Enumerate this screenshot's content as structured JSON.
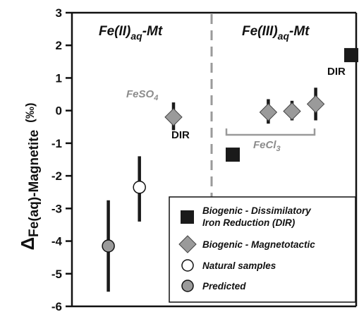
{
  "chart_data": {
    "type": "scatter",
    "ylabel": {
      "delta": "Δ",
      "main": "Fe(aq)-Magnetite",
      "unit": "(‰)"
    },
    "ylim": [
      -6,
      3
    ],
    "yticks": [
      "3",
      "2",
      "1",
      "0",
      "-1",
      "-2",
      "-3",
      "-4",
      "-5",
      "-6"
    ],
    "grid": false,
    "panels": {
      "left": {
        "label": "Fe(II)",
        "label_sub": "aq",
        "label_suffix": "-Mt"
      },
      "right": {
        "label": "Fe(III)",
        "label_sub": "aq",
        "label_suffix": "-Mt"
      }
    },
    "annotations": {
      "feso4": {
        "main": "FeSO",
        "sub": "4"
      },
      "fecl3": {
        "main": "FeCl",
        "sub": "3"
      },
      "dir_left": "DIR",
      "dir_right": "DIR"
    },
    "series": [
      {
        "name": "Biogenic - Dissimilatory Iron Reduction (DIR)",
        "marker": "square",
        "color": "#1a1a1a",
        "points": [
          {
            "x": 5,
            "y": -1.35
          },
          {
            "x": 9,
            "y": 1.7
          }
        ]
      },
      {
        "name": "Biogenic - Magnetotactic",
        "marker": "diamond",
        "color": "#9a9a9a",
        "points": [
          {
            "x": 3,
            "y": -0.2,
            "lo": -0.6,
            "hi": 0.25
          },
          {
            "x": 6.2,
            "y": -0.05,
            "lo": -0.4,
            "hi": 0.35
          },
          {
            "x": 7,
            "y": -0.02,
            "lo": -0.3,
            "hi": 0.3
          },
          {
            "x": 7.8,
            "y": 0.2,
            "lo": -0.3,
            "hi": 0.7
          }
        ]
      },
      {
        "name": "Natural samples",
        "marker": "circle-open",
        "color": "#ffffff",
        "points": [
          {
            "x": 1.85,
            "y": -2.35,
            "lo": -3.4,
            "hi": -1.4
          }
        ]
      },
      {
        "name": "Predicted",
        "marker": "circle",
        "color": "#9a9a9a",
        "points": [
          {
            "x": 0.8,
            "y": -4.15,
            "lo": -5.55,
            "hi": -2.75
          }
        ]
      }
    ],
    "legend": {
      "placement": "bottom-right",
      "items": [
        {
          "line1": "Biogenic - Dissimilatory",
          "line2": "Iron Reduction (DIR)"
        },
        {
          "line1": "Biogenic - Magnetotactic"
        },
        {
          "line1": "Natural samples"
        },
        {
          "line1": "Predicted"
        }
      ]
    }
  }
}
